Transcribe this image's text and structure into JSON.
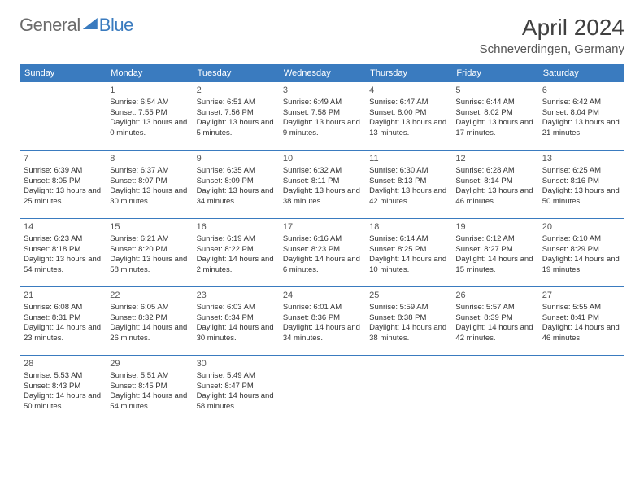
{
  "brand": {
    "part1": "General",
    "part2": "Blue"
  },
  "title": "April 2024",
  "location": "Schneverdingen, Germany",
  "colors": {
    "accent": "#3a7bbf",
    "header_text": "#ffffff",
    "body_text": "#333333",
    "muted_text": "#6b6b6b",
    "background": "#ffffff"
  },
  "weekdays": [
    "Sunday",
    "Monday",
    "Tuesday",
    "Wednesday",
    "Thursday",
    "Friday",
    "Saturday"
  ],
  "start_offset": 1,
  "days": [
    {
      "n": 1,
      "sunrise": "6:54 AM",
      "sunset": "7:55 PM",
      "dl": "13 hours and 0 minutes."
    },
    {
      "n": 2,
      "sunrise": "6:51 AM",
      "sunset": "7:56 PM",
      "dl": "13 hours and 5 minutes."
    },
    {
      "n": 3,
      "sunrise": "6:49 AM",
      "sunset": "7:58 PM",
      "dl": "13 hours and 9 minutes."
    },
    {
      "n": 4,
      "sunrise": "6:47 AM",
      "sunset": "8:00 PM",
      "dl": "13 hours and 13 minutes."
    },
    {
      "n": 5,
      "sunrise": "6:44 AM",
      "sunset": "8:02 PM",
      "dl": "13 hours and 17 minutes."
    },
    {
      "n": 6,
      "sunrise": "6:42 AM",
      "sunset": "8:04 PM",
      "dl": "13 hours and 21 minutes."
    },
    {
      "n": 7,
      "sunrise": "6:39 AM",
      "sunset": "8:05 PM",
      "dl": "13 hours and 25 minutes."
    },
    {
      "n": 8,
      "sunrise": "6:37 AM",
      "sunset": "8:07 PM",
      "dl": "13 hours and 30 minutes."
    },
    {
      "n": 9,
      "sunrise": "6:35 AM",
      "sunset": "8:09 PM",
      "dl": "13 hours and 34 minutes."
    },
    {
      "n": 10,
      "sunrise": "6:32 AM",
      "sunset": "8:11 PM",
      "dl": "13 hours and 38 minutes."
    },
    {
      "n": 11,
      "sunrise": "6:30 AM",
      "sunset": "8:13 PM",
      "dl": "13 hours and 42 minutes."
    },
    {
      "n": 12,
      "sunrise": "6:28 AM",
      "sunset": "8:14 PM",
      "dl": "13 hours and 46 minutes."
    },
    {
      "n": 13,
      "sunrise": "6:25 AM",
      "sunset": "8:16 PM",
      "dl": "13 hours and 50 minutes."
    },
    {
      "n": 14,
      "sunrise": "6:23 AM",
      "sunset": "8:18 PM",
      "dl": "13 hours and 54 minutes."
    },
    {
      "n": 15,
      "sunrise": "6:21 AM",
      "sunset": "8:20 PM",
      "dl": "13 hours and 58 minutes."
    },
    {
      "n": 16,
      "sunrise": "6:19 AM",
      "sunset": "8:22 PM",
      "dl": "14 hours and 2 minutes."
    },
    {
      "n": 17,
      "sunrise": "6:16 AM",
      "sunset": "8:23 PM",
      "dl": "14 hours and 6 minutes."
    },
    {
      "n": 18,
      "sunrise": "6:14 AM",
      "sunset": "8:25 PM",
      "dl": "14 hours and 10 minutes."
    },
    {
      "n": 19,
      "sunrise": "6:12 AM",
      "sunset": "8:27 PM",
      "dl": "14 hours and 15 minutes."
    },
    {
      "n": 20,
      "sunrise": "6:10 AM",
      "sunset": "8:29 PM",
      "dl": "14 hours and 19 minutes."
    },
    {
      "n": 21,
      "sunrise": "6:08 AM",
      "sunset": "8:31 PM",
      "dl": "14 hours and 23 minutes."
    },
    {
      "n": 22,
      "sunrise": "6:05 AM",
      "sunset": "8:32 PM",
      "dl": "14 hours and 26 minutes."
    },
    {
      "n": 23,
      "sunrise": "6:03 AM",
      "sunset": "8:34 PM",
      "dl": "14 hours and 30 minutes."
    },
    {
      "n": 24,
      "sunrise": "6:01 AM",
      "sunset": "8:36 PM",
      "dl": "14 hours and 34 minutes."
    },
    {
      "n": 25,
      "sunrise": "5:59 AM",
      "sunset": "8:38 PM",
      "dl": "14 hours and 38 minutes."
    },
    {
      "n": 26,
      "sunrise": "5:57 AM",
      "sunset": "8:39 PM",
      "dl": "14 hours and 42 minutes."
    },
    {
      "n": 27,
      "sunrise": "5:55 AM",
      "sunset": "8:41 PM",
      "dl": "14 hours and 46 minutes."
    },
    {
      "n": 28,
      "sunrise": "5:53 AM",
      "sunset": "8:43 PM",
      "dl": "14 hours and 50 minutes."
    },
    {
      "n": 29,
      "sunrise": "5:51 AM",
      "sunset": "8:45 PM",
      "dl": "14 hours and 54 minutes."
    },
    {
      "n": 30,
      "sunrise": "5:49 AM",
      "sunset": "8:47 PM",
      "dl": "14 hours and 58 minutes."
    }
  ],
  "labels": {
    "sunrise": "Sunrise:",
    "sunset": "Sunset:",
    "daylight": "Daylight:"
  }
}
